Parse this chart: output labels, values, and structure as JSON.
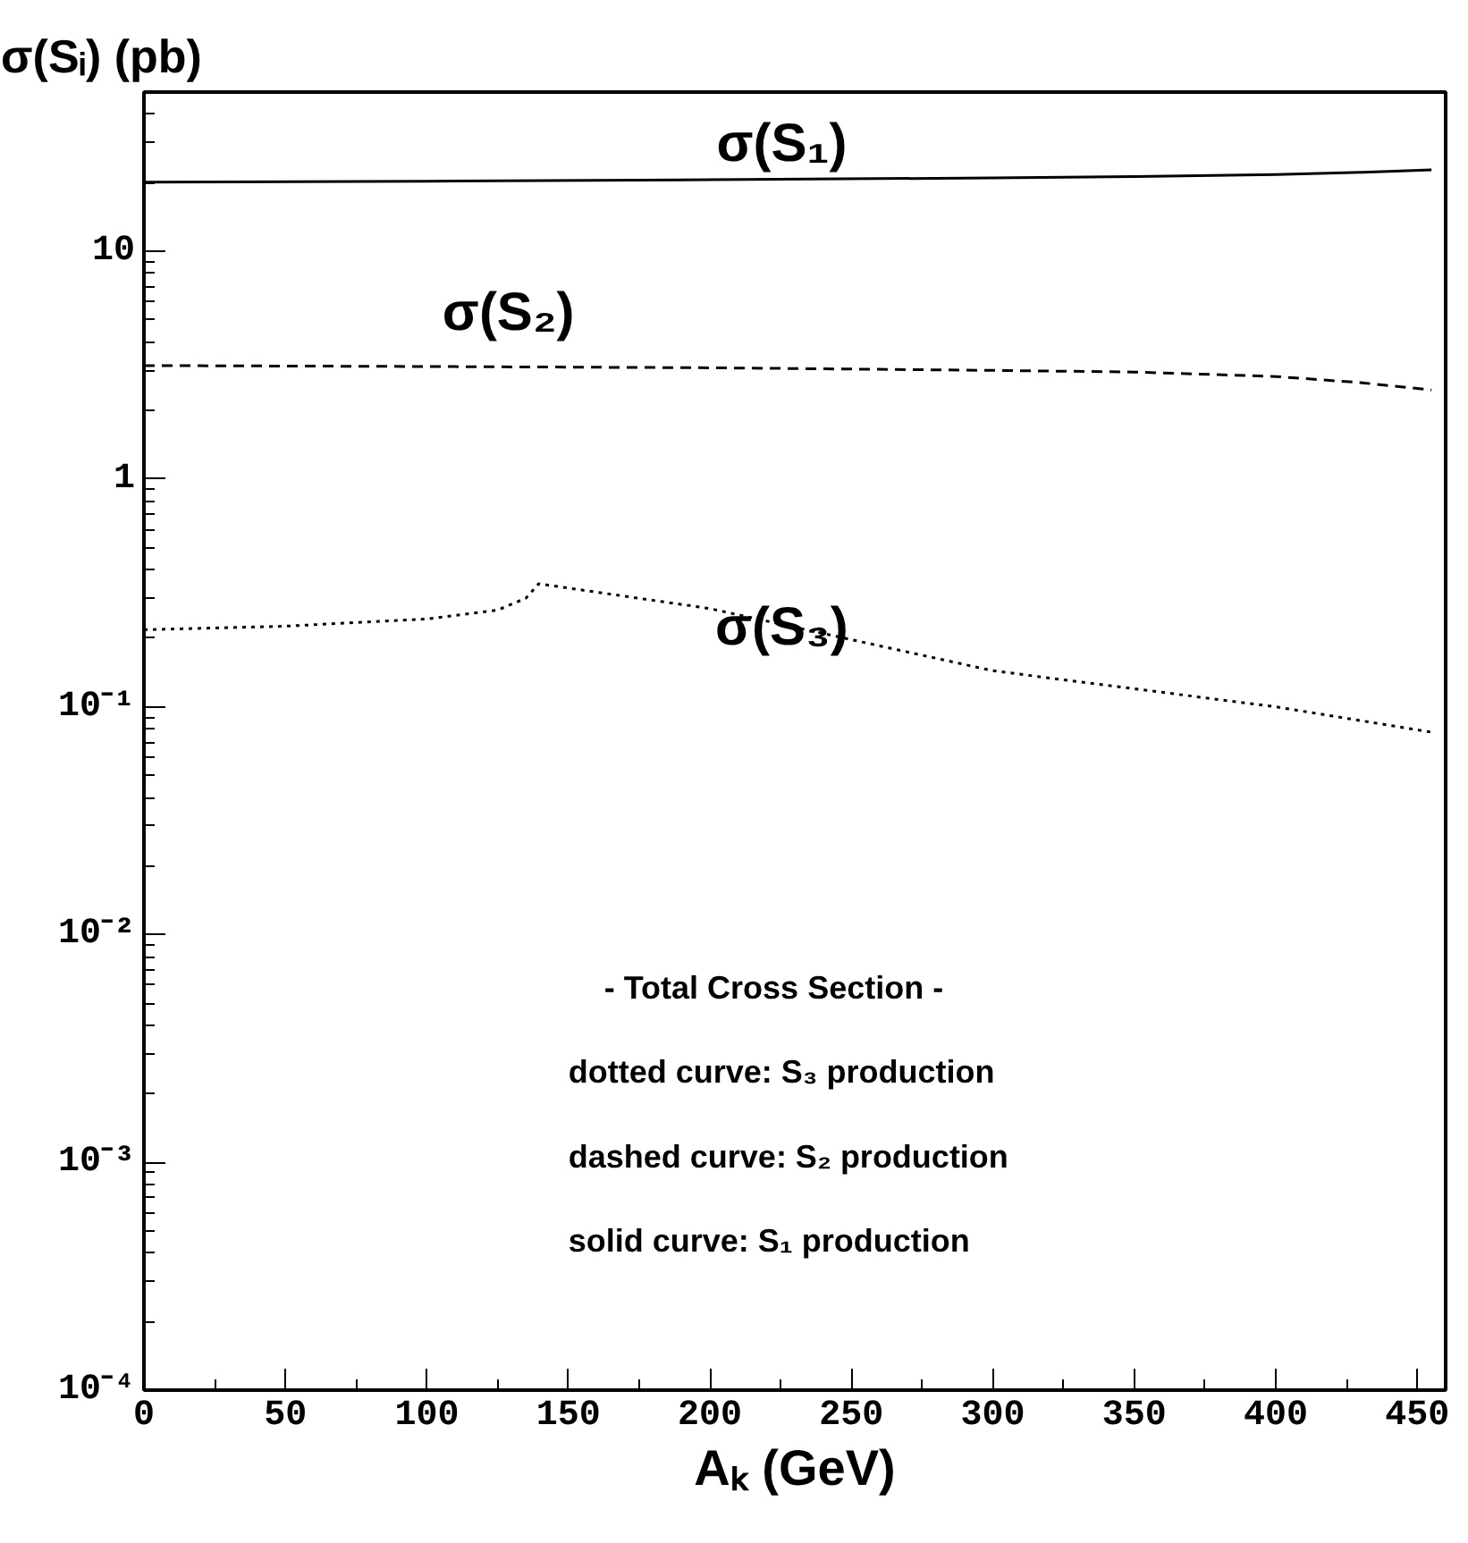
{
  "chart_data": {
    "type": "line",
    "ylabel": "σ(Sᵢ) (pb)",
    "xlabel": "Aₖ (GeV)",
    "log": "y",
    "grid": false,
    "xlim": [
      0,
      460
    ],
    "xticks": [
      0,
      50,
      100,
      150,
      200,
      250,
      300,
      350,
      400,
      450
    ],
    "ylim": [
      0.0001,
      50
    ],
    "yticks": [
      {
        "value": 0.0001,
        "label": "10⁻⁴"
      },
      {
        "value": 0.001,
        "label": "10⁻³"
      },
      {
        "value": 0.01,
        "label": "10⁻²"
      },
      {
        "value": 0.1,
        "label": "10⁻¹"
      },
      1,
      10
    ],
    "series": [
      {
        "name": "σ(S₁)",
        "color": "#000000",
        "line_style": "solid",
        "x": [
          0,
          100,
          200,
          300,
          350,
          400,
          430,
          455
        ],
        "values": [
          20.1,
          20.3,
          20.6,
          21.0,
          21.3,
          21.7,
          22.2,
          22.8
        ]
      },
      {
        "name": "σ(S₂)",
        "color": "#000000",
        "line_style": "dashed",
        "x": [
          0,
          100,
          200,
          300,
          350,
          400,
          430,
          455
        ],
        "values": [
          3.15,
          3.12,
          3.08,
          3.0,
          2.95,
          2.82,
          2.65,
          2.46
        ]
      },
      {
        "name": "σ(S₃)",
        "color": "#000000",
        "line_style": "dotted",
        "x": [
          0,
          50,
          100,
          125,
          135,
          139.5,
          200,
          300,
          400,
          455
        ],
        "values": [
          0.218,
          0.226,
          0.243,
          0.266,
          0.3,
          0.347,
          0.27,
          0.144,
          0.1,
          0.0774
        ]
      }
    ],
    "annotations": [
      "- Total Cross Section -",
      "dotted curve: S₃ production",
      "dashed curve: S₂ production",
      "solid curve: S₁ production"
    ]
  }
}
